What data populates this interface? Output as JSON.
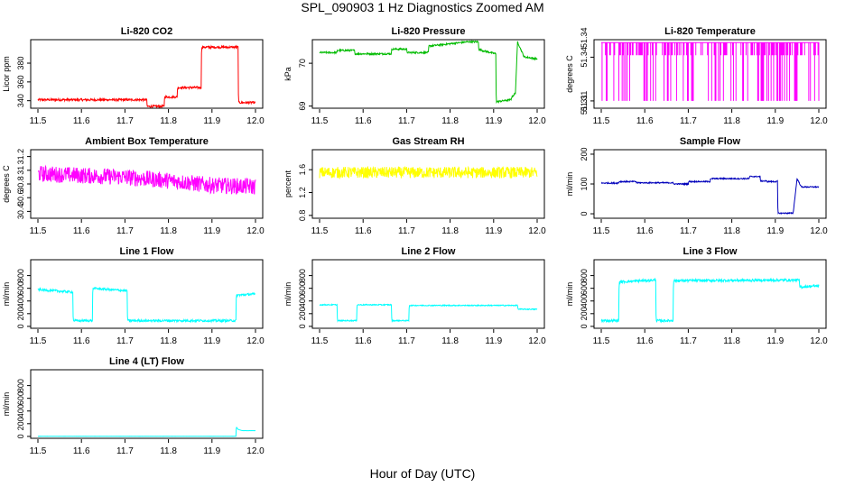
{
  "figure": {
    "title": "SPL_090903  1 Hz Diagnostics Zoomed AM",
    "xlabel": "Hour of Day (UTC)"
  },
  "chart_data": [
    {
      "type": "line",
      "title": "Li-820 CO2",
      "ylabel": "Licor ppm",
      "xlim": [
        11.5,
        12.0
      ],
      "ylim": [
        332,
        405
      ],
      "yticks": [
        340,
        360,
        380
      ],
      "xticks": [
        11.5,
        11.6,
        11.7,
        11.8,
        11.9,
        12.0
      ],
      "color": "#ff0000",
      "noise": 1.2,
      "series": [
        {
          "x": [
            11.5,
            11.75,
            11.751,
            11.79,
            11.791,
            11.82,
            11.821,
            11.875,
            11.876,
            11.96,
            11.961,
            12.0
          ],
          "y": [
            341,
            341,
            334,
            334,
            344,
            344,
            354,
            354,
            397,
            397,
            338,
            338
          ]
        }
      ]
    },
    {
      "type": "line",
      "title": "Li-820 Pressure",
      "ylabel": "kPa",
      "xlim": [
        11.5,
        12.0
      ],
      "ylim": [
        68.95,
        70.55
      ],
      "yticks": [
        69.0,
        70.0
      ],
      "xticks": [
        11.5,
        11.6,
        11.7,
        11.8,
        11.9,
        12.0
      ],
      "color": "#00bb00",
      "noise": 0.02,
      "series": [
        {
          "x": [
            11.5,
            11.54,
            11.541,
            11.58,
            11.581,
            11.665,
            11.666,
            11.7,
            11.701,
            11.75,
            11.751,
            11.84,
            11.841,
            11.865,
            11.866,
            11.88,
            11.881,
            11.905,
            11.906,
            11.94,
            11.941,
            11.95,
            11.955,
            11.97,
            12.0
          ],
          "y": [
            70.25,
            70.25,
            70.3,
            70.3,
            70.22,
            70.22,
            70.33,
            70.33,
            70.25,
            70.25,
            70.4,
            70.5,
            70.5,
            70.5,
            70.32,
            70.28,
            70.28,
            70.22,
            69.1,
            69.15,
            69.2,
            69.3,
            70.5,
            70.15,
            70.1
          ]
        }
      ]
    },
    {
      "type": "line",
      "title": "Li-820 Temperature",
      "ylabel": "degrees C",
      "xlim": [
        11.5,
        12.0
      ],
      "ylim": [
        51.305,
        51.352
      ],
      "yticks": [
        51.31,
        51.34
      ],
      "yticklabels": [
        "51.31",
        "51.34"
      ],
      "extra_ytick_labels": [
        "51.34",
        "51.31"
      ],
      "xticks": [
        11.5,
        11.6,
        11.7,
        11.8,
        11.9,
        12.0
      ],
      "color": "#ff00ff",
      "digital": [
        51.31,
        51.35
      ],
      "series": [
        {
          "x": [
            11.5,
            12.0
          ],
          "y": [
            51.35,
            51.35
          ]
        }
      ]
    },
    {
      "type": "line",
      "title": "Ambient Box Temperature",
      "ylabel": "degrees C",
      "xlim": [
        11.5,
        12.0
      ],
      "ylim": [
        30.3,
        31.3
      ],
      "yticks": [
        30.4,
        30.6,
        30.8,
        31.0,
        31.2
      ],
      "xticks": [
        11.5,
        11.6,
        11.7,
        11.8,
        11.9,
        12.0
      ],
      "color": "#ff00ff",
      "noise": 0.12,
      "series": [
        {
          "x": [
            11.5,
            11.7,
            11.8,
            11.9,
            12.0
          ],
          "y": [
            30.95,
            30.9,
            30.85,
            30.78,
            30.76
          ]
        }
      ]
    },
    {
      "type": "line",
      "title": "Gas Stream RH",
      "ylabel": "percent",
      "xlim": [
        11.5,
        12.0
      ],
      "ylim": [
        0.75,
        1.95
      ],
      "yticks": [
        0.8,
        1.2,
        1.6
      ],
      "xticks": [
        11.5,
        11.6,
        11.7,
        11.8,
        11.9,
        12.0
      ],
      "color": "#ffff00",
      "noise": 0.1,
      "series": [
        {
          "x": [
            11.5,
            12.0
          ],
          "y": [
            1.55,
            1.55
          ]
        }
      ]
    },
    {
      "type": "line",
      "title": "Sample Flow",
      "ylabel": "ml/min",
      "xlim": [
        11.5,
        12.0
      ],
      "ylim": [
        -15,
        215
      ],
      "yticks": [
        0,
        100,
        200
      ],
      "xticks": [
        11.5,
        11.6,
        11.7,
        11.8,
        11.9,
        12.0
      ],
      "color": "#0000bb",
      "noise": 2,
      "series": [
        {
          "x": [
            11.5,
            11.54,
            11.541,
            11.58,
            11.581,
            11.665,
            11.666,
            11.7,
            11.701,
            11.75,
            11.751,
            11.84,
            11.841,
            11.865,
            11.866,
            11.88,
            11.881,
            11.905,
            11.906,
            11.94,
            11.941,
            11.95,
            11.96,
            12.0
          ],
          "y": [
            103,
            103,
            108,
            108,
            104,
            104,
            100,
            100,
            108,
            108,
            118,
            118,
            125,
            125,
            110,
            110,
            108,
            108,
            2,
            2,
            2,
            118,
            90,
            90
          ]
        }
      ]
    },
    {
      "type": "line",
      "title": "Line 1 Flow",
      "ylabel": "ml/min",
      "xlim": [
        11.5,
        12.0
      ],
      "ylim": [
        -30,
        1050
      ],
      "yticks": [
        0,
        200,
        400,
        600,
        800
      ],
      "xticks": [
        11.5,
        11.6,
        11.7,
        11.8,
        11.9,
        12.0
      ],
      "color": "#00ffff",
      "noise": 18,
      "series": [
        {
          "x": [
            11.5,
            11.58,
            11.581,
            11.625,
            11.626,
            11.705,
            11.706,
            11.955,
            11.956,
            12.0
          ],
          "y": [
            580,
            540,
            90,
            90,
            600,
            560,
            90,
            90,
            490,
            510
          ]
        }
      ]
    },
    {
      "type": "line",
      "title": "Line 2 Flow",
      "ylabel": "ml/min",
      "xlim": [
        11.5,
        12.0
      ],
      "ylim": [
        -30,
        1050
      ],
      "yticks": [
        0,
        200,
        400,
        600,
        800
      ],
      "xticks": [
        11.5,
        11.6,
        11.7,
        11.8,
        11.9,
        12.0
      ],
      "color": "#00ffff",
      "noise": 8,
      "series": [
        {
          "x": [
            11.5,
            11.54,
            11.541,
            11.585,
            11.586,
            11.665,
            11.666,
            11.705,
            11.706,
            11.955,
            11.956,
            12.0
          ],
          "y": [
            340,
            340,
            90,
            90,
            340,
            340,
            90,
            90,
            330,
            330,
            270,
            270
          ]
        }
      ]
    },
    {
      "type": "line",
      "title": "Line 3 Flow",
      "ylabel": "ml/min",
      "xlim": [
        11.5,
        12.0
      ],
      "ylim": [
        -30,
        1050
      ],
      "yticks": [
        0,
        200,
        400,
        600,
        800
      ],
      "xticks": [
        11.5,
        11.6,
        11.7,
        11.8,
        11.9,
        12.0
      ],
      "color": "#00ffff",
      "noise": 20,
      "series": [
        {
          "x": [
            11.5,
            11.54,
            11.541,
            11.625,
            11.626,
            11.665,
            11.666,
            11.955,
            11.956,
            12.0
          ],
          "y": [
            90,
            90,
            700,
            730,
            90,
            90,
            720,
            730,
            620,
            640
          ]
        }
      ]
    },
    {
      "type": "line",
      "title": "Line 4 (LT) Flow",
      "ylabel": "ml/min",
      "xlim": [
        11.5,
        12.0
      ],
      "ylim": [
        -30,
        1050
      ],
      "yticks": [
        0,
        200,
        400,
        600,
        800
      ],
      "xticks": [
        11.5,
        11.6,
        11.7,
        11.8,
        11.9,
        12.0
      ],
      "color": "#00ffff",
      "noise": 1,
      "series": [
        {
          "x": [
            11.5,
            11.955,
            11.956,
            11.96,
            11.97,
            12.0
          ],
          "y": [
            2,
            2,
            150,
            110,
            90,
            90
          ]
        }
      ]
    }
  ]
}
